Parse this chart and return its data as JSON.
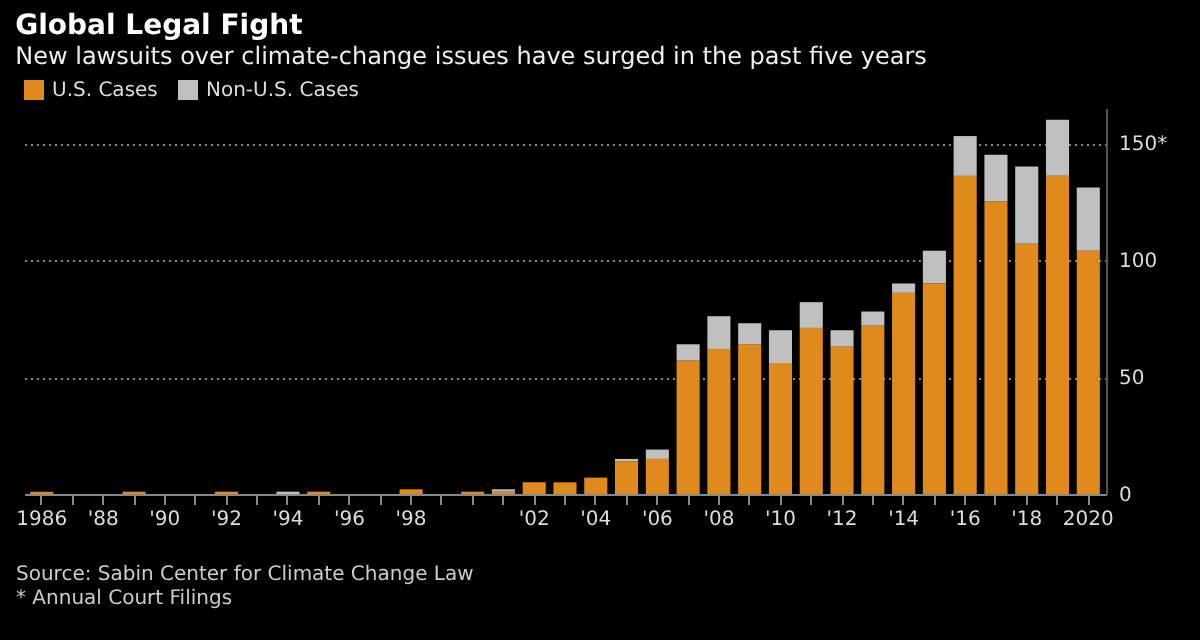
{
  "chart_data": {
    "type": "bar",
    "title": "Global Legal Fight",
    "subtitle": "New lawsuits over climate-change issues have surged in the past five years",
    "categories": [
      "1986",
      null,
      "'88",
      null,
      "'90",
      null,
      "'92",
      null,
      "'94",
      null,
      "'96",
      null,
      "'98",
      null,
      null,
      null,
      "'02",
      null,
      "'04",
      null,
      "'06",
      null,
      "'08",
      null,
      "'10",
      null,
      "'12",
      null,
      "'14",
      null,
      "'16",
      null,
      "'18",
      null,
      "2020"
    ],
    "series": [
      {
        "name": "U.S. Cases",
        "color": "#e08a1e",
        "values": [
          1,
          0,
          0,
          1,
          0,
          0,
          1,
          0,
          0,
          1,
          0,
          0,
          2,
          0,
          1,
          1,
          5,
          5,
          7,
          14,
          15,
          57,
          62,
          64,
          56,
          71,
          63,
          72,
          86,
          90,
          136,
          125,
          107,
          136,
          104
        ]
      },
      {
        "name": "Non-U.S. Cases",
        "color": "#c0c0c0",
        "values": [
          0,
          0,
          0,
          0,
          0,
          0,
          0,
          0,
          1,
          0,
          0,
          0,
          0,
          0,
          0,
          1,
          0,
          0,
          0,
          1,
          4,
          7,
          14,
          9,
          14,
          11,
          7,
          6,
          4,
          14,
          17,
          20,
          33,
          24,
          27
        ]
      }
    ],
    "stacked": true,
    "ylim": [
      0,
      165
    ],
    "yticks": [
      0,
      50,
      100,
      {
        "value": 150,
        "label": "150*"
      }
    ],
    "grid": "y",
    "legend": "top left",
    "annotations": [
      "Source: Sabin Center for Climate Change Law",
      "* Annual Court Filings"
    ]
  }
}
